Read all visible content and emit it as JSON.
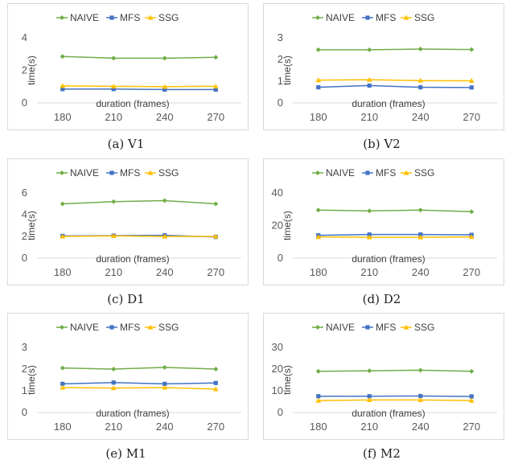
{
  "chart_data": [
    {
      "type": "line",
      "caption": "(a) V1",
      "categories": [
        "180",
        "210",
        "240",
        "270"
      ],
      "xlabel": "duration (frames)",
      "ylabel": "time(s)",
      "ylim": [
        0,
        4
      ],
      "yticks": [
        "0",
        "2",
        "4"
      ],
      "grid": false,
      "legend": "top",
      "series": [
        {
          "name": "NAIVE",
          "color": "#70ad47",
          "marker": "diamond",
          "values": [
            2.85,
            2.75,
            2.75,
            2.8
          ]
        },
        {
          "name": "MFS",
          "color": "#4472c4",
          "marker": "square",
          "values": [
            0.85,
            0.85,
            0.82,
            0.82
          ]
        },
        {
          "name": "SSG",
          "color": "#ffc000",
          "marker": "triangle",
          "values": [
            1.05,
            1.02,
            1.0,
            1.02
          ]
        }
      ]
    },
    {
      "type": "line",
      "caption": "(b) V2",
      "categories": [
        "180",
        "210",
        "240",
        "270"
      ],
      "xlabel": "duration (frames)",
      "ylabel": "time(s)",
      "ylim": [
        0,
        3
      ],
      "yticks": [
        "0",
        "1",
        "2",
        "3"
      ],
      "grid": false,
      "legend": "top",
      "series": [
        {
          "name": "NAIVE",
          "color": "#70ad47",
          "marker": "diamond",
          "values": [
            2.45,
            2.45,
            2.48,
            2.46
          ]
        },
        {
          "name": "MFS",
          "color": "#4472c4",
          "marker": "square",
          "values": [
            0.72,
            0.8,
            0.72,
            0.71
          ]
        },
        {
          "name": "SSG",
          "color": "#ffc000",
          "marker": "triangle",
          "values": [
            1.05,
            1.07,
            1.03,
            1.02
          ]
        }
      ]
    },
    {
      "type": "line",
      "caption": "(c) D1",
      "categories": [
        "180",
        "210",
        "240",
        "270"
      ],
      "xlabel": "duration (frames)",
      "ylabel": "time(s)",
      "ylim": [
        0,
        6
      ],
      "yticks": [
        "0",
        "2",
        "4",
        "6"
      ],
      "grid": false,
      "legend": "top",
      "series": [
        {
          "name": "NAIVE",
          "color": "#70ad47",
          "marker": "diamond",
          "values": [
            5.0,
            5.2,
            5.3,
            5.0
          ]
        },
        {
          "name": "MFS",
          "color": "#4472c4",
          "marker": "square",
          "values": [
            2.05,
            2.07,
            2.1,
            1.95
          ]
        },
        {
          "name": "SSG",
          "color": "#ffc000",
          "marker": "triangle",
          "values": [
            2.0,
            2.05,
            2.0,
            2.0
          ]
        }
      ]
    },
    {
      "type": "line",
      "caption": "(d) D2",
      "categories": [
        "180",
        "210",
        "240",
        "270"
      ],
      "xlabel": "duration (frames)",
      "ylabel": "time(s)",
      "ylim": [
        0,
        40
      ],
      "yticks": [
        "0",
        "20",
        "40"
      ],
      "grid": false,
      "legend": "top",
      "series": [
        {
          "name": "NAIVE",
          "color": "#70ad47",
          "marker": "diamond",
          "values": [
            29.5,
            29.0,
            29.5,
            28.5
          ]
        },
        {
          "name": "MFS",
          "color": "#4472c4",
          "marker": "square",
          "values": [
            14.0,
            14.5,
            14.5,
            14.3
          ]
        },
        {
          "name": "SSG",
          "color": "#ffc000",
          "marker": "triangle",
          "values": [
            13.0,
            12.8,
            12.8,
            13.0
          ]
        }
      ]
    },
    {
      "type": "line",
      "caption": "(e) M1",
      "categories": [
        "180",
        "210",
        "240",
        "270"
      ],
      "xlabel": "duration (frames)",
      "ylabel": "time(s)",
      "ylim": [
        0,
        3
      ],
      "yticks": [
        "0",
        "1",
        "2",
        "3"
      ],
      "grid": false,
      "legend": "top",
      "series": [
        {
          "name": "NAIVE",
          "color": "#70ad47",
          "marker": "diamond",
          "values": [
            2.05,
            2.0,
            2.08,
            2.0
          ]
        },
        {
          "name": "MFS",
          "color": "#4472c4",
          "marker": "square",
          "values": [
            1.32,
            1.38,
            1.32,
            1.36
          ]
        },
        {
          "name": "SSG",
          "color": "#ffc000",
          "marker": "triangle",
          "values": [
            1.15,
            1.13,
            1.15,
            1.08
          ]
        }
      ]
    },
    {
      "type": "line",
      "caption": "(f) M2",
      "categories": [
        "180",
        "210",
        "240",
        "270"
      ],
      "xlabel": "duration (frames)",
      "ylabel": "time(s)",
      "ylim": [
        0,
        30
      ],
      "yticks": [
        "0",
        "10",
        "20",
        "30"
      ],
      "grid": false,
      "legend": "top",
      "series": [
        {
          "name": "NAIVE",
          "color": "#70ad47",
          "marker": "diamond",
          "values": [
            19.0,
            19.2,
            19.5,
            19.0
          ]
        },
        {
          "name": "MFS",
          "color": "#4472c4",
          "marker": "square",
          "values": [
            7.5,
            7.5,
            7.6,
            7.4
          ]
        },
        {
          "name": "SSG",
          "color": "#ffc000",
          "marker": "triangle",
          "values": [
            5.5,
            5.8,
            5.8,
            5.5
          ]
        }
      ]
    }
  ]
}
